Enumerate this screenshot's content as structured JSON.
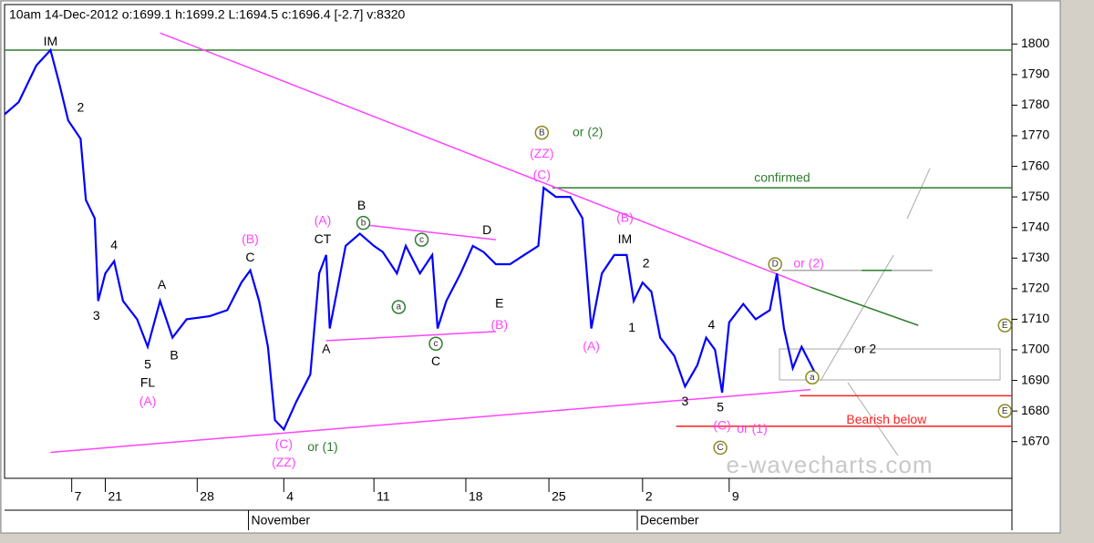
{
  "chart_data": {
    "type": "line",
    "title": "10am 14-Dec-2012  o:1699.1 h:1699.2 L:1694.5 c:1696.4 [-2.7] v:8320",
    "watermark": "e-wavecharts.com",
    "xlim": [
      0,
      57
    ],
    "ylim": [
      1658,
      1812
    ],
    "yticks": [
      1670,
      1680,
      1690,
      1700,
      1710,
      1720,
      1730,
      1740,
      1750,
      1760,
      1770,
      1780,
      1790,
      1800
    ],
    "xticks": [
      {
        "value": 3.8,
        "label": "7"
      },
      {
        "value": 5.7,
        "label": "21"
      },
      {
        "value": 10.9,
        "label": "28"
      },
      {
        "value": 15.8,
        "label": "4"
      },
      {
        "value": 20.9,
        "label": "11"
      },
      {
        "value": 26.1,
        "label": "18"
      },
      {
        "value": 30.8,
        "label": "25"
      },
      {
        "value": 36.1,
        "label": "2"
      },
      {
        "value": 41.0,
        "label": "9"
      }
    ],
    "months": [
      {
        "value": 13.8,
        "label": "November"
      },
      {
        "value": 35.8,
        "label": "December"
      }
    ],
    "series": [
      {
        "color": "#0000ff",
        "x": [
          0,
          0.8,
          1.8,
          2.6,
          3.1,
          3.6,
          4.3,
          4.6,
          5.1,
          5.3,
          5.7,
          6.2,
          6.7,
          7.5,
          8.1,
          8.8,
          9.5,
          10.3,
          11.6,
          12.6,
          13.4,
          13.9,
          14.4,
          14.9,
          15.3,
          15.8,
          16.5,
          17.3,
          17.8,
          18.2,
          18.4,
          18.8,
          19.3,
          20.1,
          20.9,
          21.4,
          22.2,
          22.7,
          23.5,
          24.2,
          24.5,
          25.0,
          25.8,
          26.5,
          27.1,
          27.8,
          28.6,
          29.4,
          30.2,
          30.5,
          31.2,
          32.0,
          32.7,
          33.2,
          33.8,
          34.5,
          35.2,
          35.6,
          36.1,
          36.6,
          37.1,
          37.9,
          38.5,
          39.2,
          39.7,
          40.2,
          40.6,
          41.0,
          41.8,
          42.5,
          43.3,
          43.7,
          44.1,
          44.6,
          45.1,
          45.9
        ],
        "values": [
          1777,
          1781,
          1793,
          1798,
          1787,
          1775,
          1769,
          1749,
          1743,
          1716,
          1725,
          1729,
          1716,
          1710,
          1701,
          1716,
          1704,
          1710,
          1711,
          1713,
          1722,
          1726,
          1716,
          1701,
          1677,
          1674,
          1683,
          1692,
          1725,
          1731,
          1707,
          1719,
          1734,
          1738,
          1734,
          1732,
          1725,
          1734,
          1725,
          1731,
          1707,
          1716,
          1725,
          1734,
          1732,
          1728,
          1728,
          1731,
          1734,
          1753,
          1750,
          1750,
          1743,
          1707,
          1725,
          1731,
          1731,
          1716,
          1722,
          1719,
          1704,
          1698,
          1688,
          1695,
          1704,
          1700,
          1686,
          1709,
          1715,
          1710,
          1713,
          1725,
          1707,
          1694,
          1701,
          1692
        ]
      }
    ],
    "lines": [
      {
        "x": [
          0,
          57
        ],
        "y": [
          1798,
          1798
        ],
        "color": "#2e7d2e"
      },
      {
        "x": [
          31,
          57
        ],
        "y": [
          1753,
          1753
        ],
        "color": "#2e7d2e"
      },
      {
        "x": [
          45,
          57
        ],
        "y": [
          1685,
          1685
        ],
        "color": "#ff2020"
      },
      {
        "x": [
          38,
          57
        ],
        "y": [
          1675,
          1675
        ],
        "color": "#ff2020"
      },
      {
        "x": [
          8.8,
          45.6
        ],
        "y": [
          1803.6,
          1720.5
        ],
        "color": "#ff44ff"
      },
      {
        "x": [
          2.6,
          45.6
        ],
        "y": [
          1666.5,
          1687
        ],
        "color": "#ff44ff"
      },
      {
        "x": [
          45.6,
          51.7
        ],
        "y": [
          1720.5,
          1708
        ],
        "color": "#2e7d2e"
      },
      {
        "x": [
          18.2,
          27.8
        ],
        "y": [
          1703,
          1706
        ],
        "color": "#ff44ff"
      },
      {
        "x": [
          20.2,
          27.8
        ],
        "y": [
          1741,
          1736
        ],
        "color": "#ff44ff"
      },
      {
        "x": [
          44,
          52.5
        ],
        "y": [
          1726,
          1726
        ],
        "color": "#aaaaaa"
      },
      {
        "x": [
          48.5,
          50.2
        ],
        "y": [
          1726,
          1726
        ],
        "color": "#2e7d2e"
      }
    ],
    "annotations": [
      {
        "text": "IM",
        "x": 2.6,
        "y": 1800.6,
        "color": "#000000"
      },
      {
        "text": "2",
        "x": 4.3,
        "y": 1779,
        "color": "#000000"
      },
      {
        "text": "4",
        "x": 6.2,
        "y": 1734,
        "color": "#000000"
      },
      {
        "text": "3",
        "x": 5.2,
        "y": 1711,
        "color": "#000000"
      },
      {
        "text": "5",
        "x": 8.1,
        "y": 1695,
        "color": "#000000"
      },
      {
        "text": "FL",
        "x": 8.1,
        "y": 1689,
        "color": "#000000"
      },
      {
        "text": "(A)",
        "x": 8.1,
        "y": 1683,
        "color": "#ff44ff"
      },
      {
        "text": "A",
        "x": 8.9,
        "y": 1721,
        "color": "#000000"
      },
      {
        "text": "B",
        "x": 9.6,
        "y": 1698,
        "color": "#000000"
      },
      {
        "text": "(B)",
        "x": 13.9,
        "y": 1736,
        "color": "#ff44ff"
      },
      {
        "text": "C",
        "x": 13.9,
        "y": 1730,
        "color": "#000000"
      },
      {
        "text": "(C)",
        "x": 15.8,
        "y": 1669,
        "color": "#ff44ff"
      },
      {
        "text": "(ZZ)",
        "x": 15.8,
        "y": 1663,
        "color": "#ff44ff"
      },
      {
        "text": "or (1)",
        "x": 18.0,
        "y": 1668,
        "color": "#2e7d2e"
      },
      {
        "text": "(A)",
        "x": 18.0,
        "y": 1742,
        "color": "#ff44ff"
      },
      {
        "text": "CT",
        "x": 18.0,
        "y": 1736,
        "color": "#000000"
      },
      {
        "text": "A",
        "x": 18.2,
        "y": 1700,
        "color": "#000000"
      },
      {
        "text": "B",
        "x": 20.2,
        "y": 1747,
        "color": "#000000"
      },
      {
        "text": "b",
        "x": 20.3,
        "y": 1741.5,
        "color": "#2e7d2e",
        "circle": true
      },
      {
        "text": "a",
        "x": 22.3,
        "y": 1714,
        "color": "#2e7d2e",
        "circle": true
      },
      {
        "text": "c",
        "x": 23.6,
        "y": 1736,
        "color": "#2e7d2e",
        "circle": true
      },
      {
        "text": "D",
        "x": 27.3,
        "y": 1739,
        "color": "#000000"
      },
      {
        "text": "E",
        "x": 28.0,
        "y": 1715,
        "color": "#000000"
      },
      {
        "text": "(B)",
        "x": 28.0,
        "y": 1708,
        "color": "#ff44ff"
      },
      {
        "text": "c",
        "x": 24.4,
        "y": 1702,
        "color": "#2e7d2e",
        "circle": true
      },
      {
        "text": "C",
        "x": 24.4,
        "y": 1696,
        "color": "#000000"
      },
      {
        "text": "B",
        "x": 30.4,
        "y": 1771,
        "color": "#8a8a20",
        "circle": true
      },
      {
        "text": "or (2)",
        "x": 33.0,
        "y": 1771,
        "color": "#2e7d2e"
      },
      {
        "text": "(ZZ)",
        "x": 30.4,
        "y": 1764,
        "color": "#ff44ff"
      },
      {
        "text": "(C)",
        "x": 30.4,
        "y": 1757,
        "color": "#ff44ff"
      },
      {
        "text": "(B)",
        "x": 35.1,
        "y": 1743,
        "color": "#ff44ff"
      },
      {
        "text": "IM",
        "x": 35.1,
        "y": 1736,
        "color": "#000000"
      },
      {
        "text": "2",
        "x": 36.3,
        "y": 1728,
        "color": "#000000"
      },
      {
        "text": "1",
        "x": 35.5,
        "y": 1707,
        "color": "#000000"
      },
      {
        "text": "(A)",
        "x": 33.2,
        "y": 1701,
        "color": "#ff44ff"
      },
      {
        "text": "4",
        "x": 40.0,
        "y": 1708,
        "color": "#000000"
      },
      {
        "text": "3",
        "x": 38.5,
        "y": 1683,
        "color": "#000000"
      },
      {
        "text": "5",
        "x": 40.5,
        "y": 1681,
        "color": "#000000"
      },
      {
        "text": "(C)",
        "x": 40.6,
        "y": 1675,
        "color": "#ff44ff"
      },
      {
        "text": "or (1)",
        "x": 42.3,
        "y": 1674,
        "color": "#ff44ff"
      },
      {
        "text": "C",
        "x": 40.5,
        "y": 1668,
        "color": "#8a8a20",
        "circle": true
      },
      {
        "text": "D",
        "x": 43.6,
        "y": 1728,
        "color": "#8a8a20",
        "circle": true
      },
      {
        "text": "or (2)",
        "x": 45.5,
        "y": 1728,
        "color": "#ff44ff"
      },
      {
        "text": "or 2",
        "x": 48.7,
        "y": 1700,
        "color": "#000000"
      },
      {
        "text": "a",
        "x": 45.7,
        "y": 1691,
        "color": "#8a8a20",
        "circle": true
      },
      {
        "text": "Bearish below",
        "x": 49.9,
        "y": 1677,
        "color": "#ff2020"
      },
      {
        "text": "confirmed",
        "x": 44.0,
        "y": 1756,
        "color": "#2e7d2e"
      },
      {
        "text": "E",
        "x": 56.6,
        "y": 1708,
        "color": "#8a8a20",
        "circle": true
      },
      {
        "text": "E",
        "x": 56.6,
        "y": 1680,
        "color": "#8a8a20",
        "circle": true
      }
    ]
  }
}
